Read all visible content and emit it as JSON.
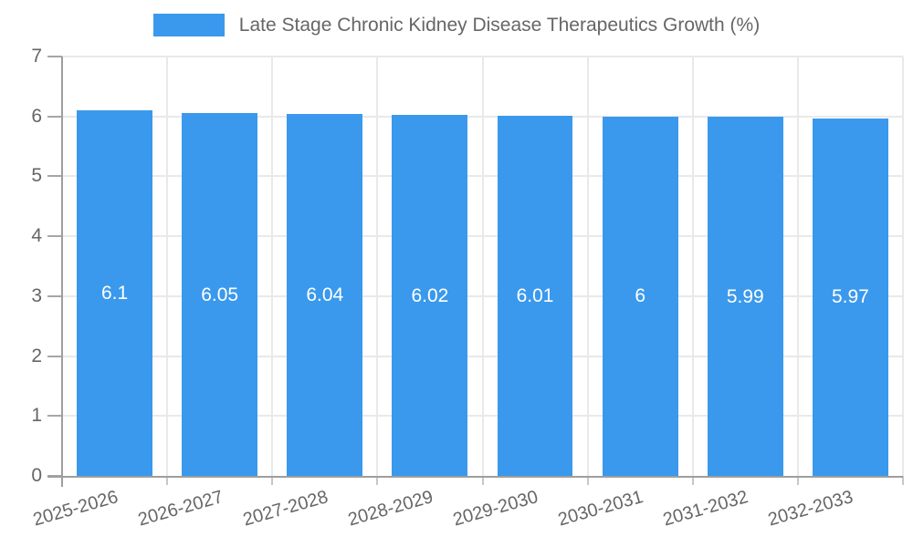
{
  "chart_data": {
    "type": "bar",
    "title": "Late Stage Chronic Kidney Disease Therapeutics Growth (%)",
    "categories": [
      "2025-2026",
      "2026-2027",
      "2027-2028",
      "2028-2029",
      "2029-2030",
      "2030-2031",
      "2031-2032",
      "2032-2033"
    ],
    "values": [
      6.1,
      6.05,
      6.04,
      6.02,
      6.01,
      6,
      5.99,
      5.97
    ],
    "value_labels": [
      "6.1",
      "6.05",
      "6.04",
      "6.02",
      "6.01",
      "6",
      "5.99",
      "5.97"
    ],
    "xlabel": "",
    "ylabel": "",
    "ylim": [
      0,
      7
    ],
    "yticks": [
      0,
      1,
      2,
      3,
      4,
      5,
      6,
      7
    ],
    "grid": true,
    "legend_position": "top",
    "bar_label_position": "center",
    "colors": {
      "bar": "#3A99EC",
      "bar_label": "#FFFFFF",
      "grid_line": "#E9E9E9",
      "axis_line": "#9E9E9E",
      "tick_text": "#666666",
      "title_text": "#666666",
      "background": "#FFFFFF"
    }
  }
}
